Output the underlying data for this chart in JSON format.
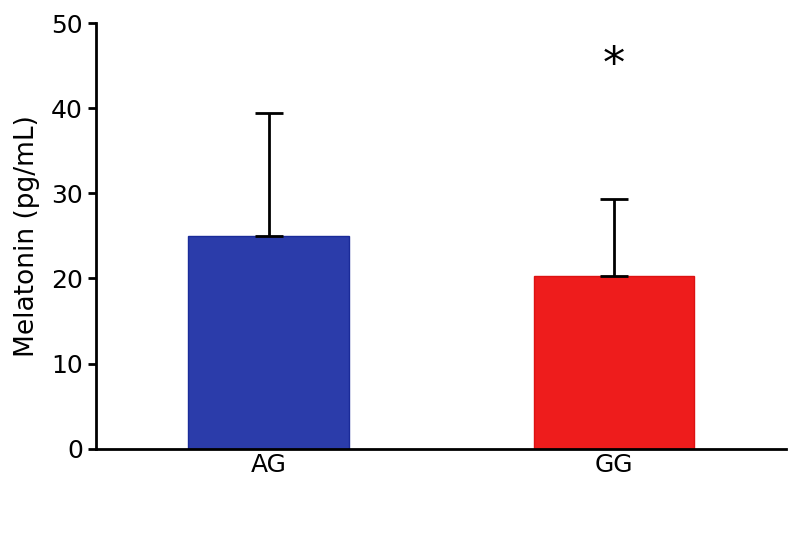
{
  "categories": [
    "AG",
    "GG"
  ],
  "values": [
    25.0,
    20.3
  ],
  "errors_upper": [
    14.5,
    9.0
  ],
  "errors_lower": [
    0,
    0
  ],
  "bar_colors": [
    "#2b3caa",
    "#ee1c1c"
  ],
  "bar_edge_colors": [
    "#1a2b99",
    "#dd1111"
  ],
  "bar_width": 0.65,
  "ylabel": "Melatonin (pg/mL)",
  "ylim": [
    0,
    50
  ],
  "yticks": [
    0,
    10,
    20,
    30,
    40,
    50
  ],
  "bar_positions": [
    1.0,
    2.4
  ],
  "xlim": [
    0.3,
    3.1
  ],
  "asterisk_text": "*",
  "asterisk_x": 2.4,
  "asterisk_y": 42.5,
  "asterisk_fontsize": 32,
  "ylabel_fontsize": 19,
  "tick_fontsize": 18,
  "error_capsize": 10,
  "error_linewidth": 2.0,
  "spine_linewidth": 2.0,
  "background_color": "#ffffff"
}
